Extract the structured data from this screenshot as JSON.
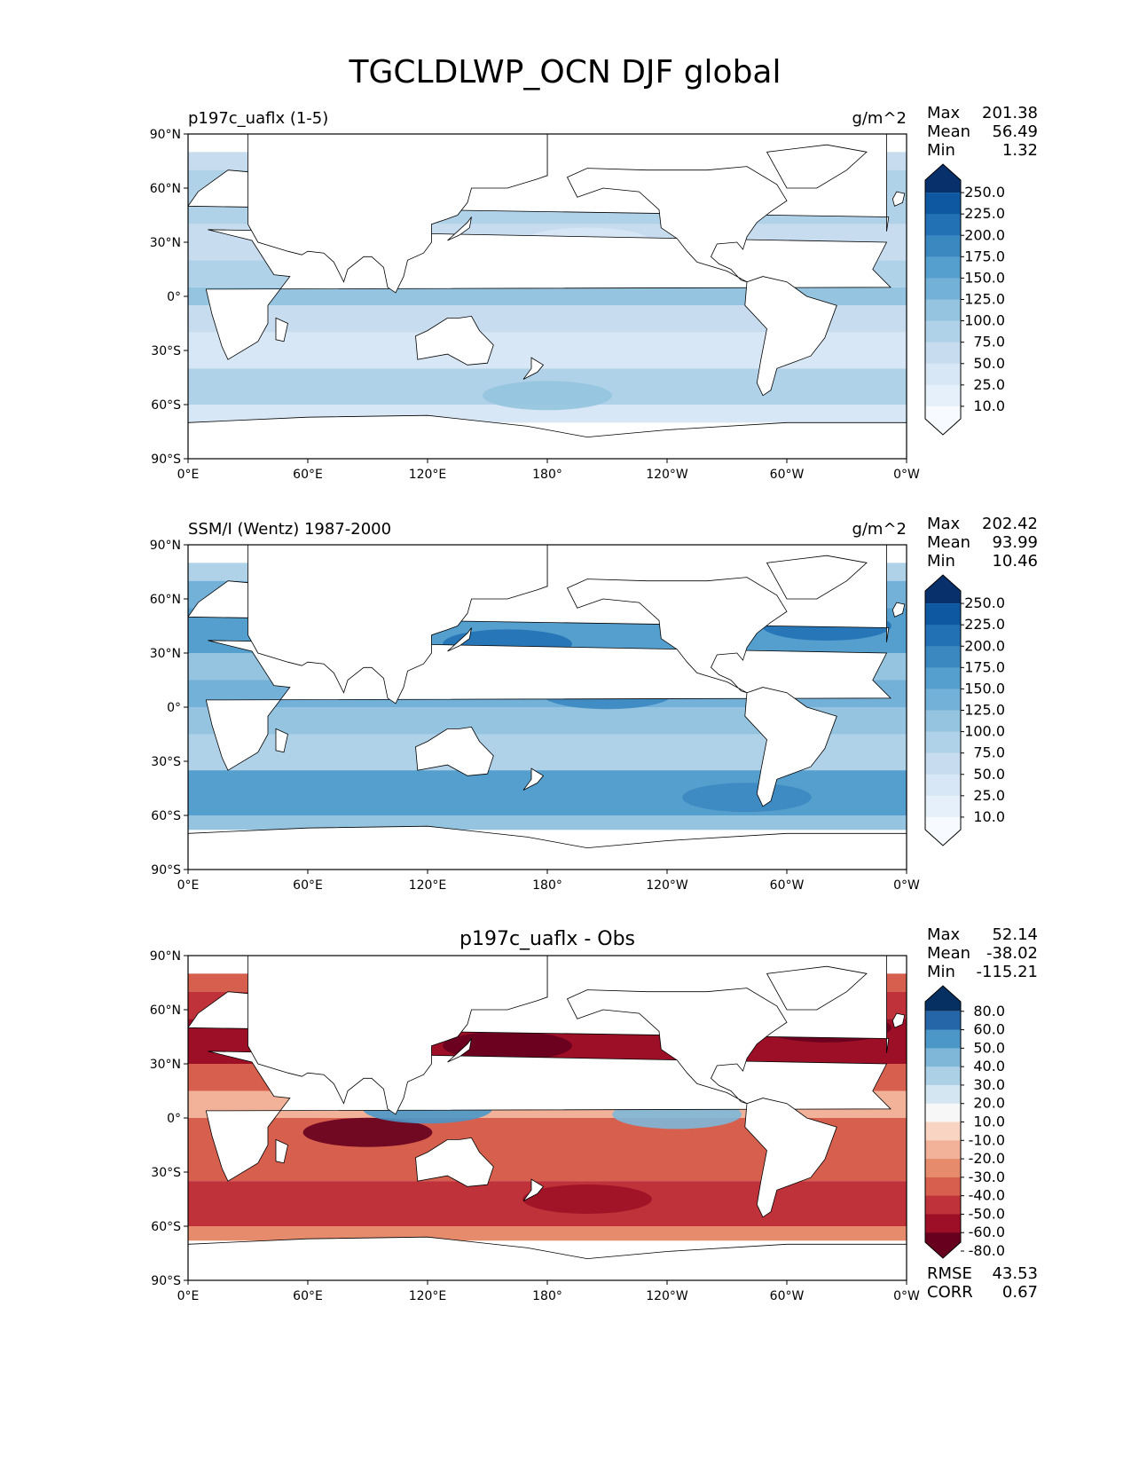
{
  "page_title": "TGCLDLWP_OCN DJF global",
  "colors": {
    "blues_scale": [
      "#f7fbff",
      "#e6f0fa",
      "#d8e7f5",
      "#c7dcef",
      "#b0d2e8",
      "#94c4df",
      "#74b1d9",
      "#549fcd",
      "#3b88c1",
      "#2271b5",
      "#0e58a2",
      "#08306b"
    ],
    "diff_scale": [
      "#67001f",
      "#9d0f26",
      "#c0323a",
      "#d65f4e",
      "#e68c6d",
      "#f2b29a",
      "#fad4c2",
      "#f7f7f7",
      "#d4e6f1",
      "#acd1e6",
      "#7eb7d8",
      "#4a97c8",
      "#2566a8",
      "#053061"
    ],
    "land": "#ffffff",
    "coastline": "#000000"
  },
  "chart_data": [
    {
      "type": "heatmap",
      "title": "p197c_uaflx (1-5)",
      "units": "g/m^2",
      "stats": {
        "max_label": "Max",
        "max": "201.38",
        "mean_label": "Mean",
        "mean": "56.49",
        "min_label": "Min",
        "min": "1.32"
      },
      "x_ticks": [
        "0°E",
        "60°E",
        "120°E",
        "180°",
        "120°W",
        "60°W",
        "0°W"
      ],
      "y_ticks": [
        "90°N",
        "60°N",
        "30°N",
        "0°",
        "30°S",
        "60°S",
        "90°S"
      ],
      "xlim": [
        0,
        360
      ],
      "ylim": [
        -90,
        90
      ],
      "colorbar_labels": [
        "250.0",
        "225.0",
        "200.0",
        "175.0",
        "150.0",
        "125.0",
        "100.0",
        "75.0",
        "50.0",
        "25.0",
        "10.0"
      ],
      "colormap": "blues_scale",
      "bands": [
        {
          "lat": [
            70,
            80
          ],
          "level": 3
        },
        {
          "lat": [
            55,
            70
          ],
          "level": 4
        },
        {
          "lat": [
            40,
            55
          ],
          "level": 4
        },
        {
          "lat": [
            20,
            40
          ],
          "level": 3
        },
        {
          "lat": [
            5,
            20
          ],
          "level": 4
        },
        {
          "lat": [
            -5,
            5
          ],
          "level": 5
        },
        {
          "lat": [
            -20,
            -5
          ],
          "level": 3
        },
        {
          "lat": [
            -40,
            -20
          ],
          "level": 2
        },
        {
          "lat": [
            -60,
            -40
          ],
          "level": 4
        },
        {
          "lat": [
            -70,
            -60
          ],
          "level": 2
        }
      ],
      "features": [
        {
          "lon": 130,
          "lat": 15,
          "level": 6
        },
        {
          "lon": 285,
          "lat": 5,
          "level": 5
        },
        {
          "lon": 200,
          "lat": 30,
          "level": 2
        },
        {
          "lon": 180,
          "lat": -55,
          "level": 5
        }
      ]
    },
    {
      "type": "heatmap",
      "title": "SSM/I (Wentz) 1987-2000",
      "units": "g/m^2",
      "stats": {
        "max_label": "Max",
        "max": "202.42",
        "mean_label": "Mean",
        "mean": "93.99",
        "min_label": "Min",
        "min": "10.46"
      },
      "x_ticks": [
        "0°E",
        "60°E",
        "120°E",
        "180°",
        "120°W",
        "60°W",
        "0°W"
      ],
      "y_ticks": [
        "90°N",
        "60°N",
        "30°N",
        "0°",
        "30°S",
        "60°S",
        "90°S"
      ],
      "xlim": [
        0,
        360
      ],
      "ylim": [
        -90,
        90
      ],
      "colorbar_labels": [
        "250.0",
        "225.0",
        "200.0",
        "175.0",
        "150.0",
        "125.0",
        "100.0",
        "75.0",
        "50.0",
        "25.0",
        "10.0"
      ],
      "colormap": "blues_scale",
      "bands": [
        {
          "lat": [
            70,
            80
          ],
          "level": 4
        },
        {
          "lat": [
            55,
            70
          ],
          "level": 6
        },
        {
          "lat": [
            30,
            55
          ],
          "level": 7
        },
        {
          "lat": [
            15,
            30
          ],
          "level": 5
        },
        {
          "lat": [
            0,
            15
          ],
          "level": 6
        },
        {
          "lat": [
            -15,
            0
          ],
          "level": 5
        },
        {
          "lat": [
            -35,
            -15
          ],
          "level": 4
        },
        {
          "lat": [
            -60,
            -35
          ],
          "level": 7
        },
        {
          "lat": [
            -68,
            -60
          ],
          "level": 5
        }
      ],
      "features": [
        {
          "lon": 160,
          "lat": 35,
          "level": 9
        },
        {
          "lon": 320,
          "lat": 45,
          "level": 9
        },
        {
          "lon": 210,
          "lat": 7,
          "level": 8
        },
        {
          "lon": 280,
          "lat": -50,
          "level": 8
        }
      ]
    },
    {
      "type": "heatmap",
      "title": "p197c_uaflx - Obs",
      "stats": {
        "max_label": "Max",
        "max": "52.14",
        "mean_label": "Mean",
        "mean": "-38.02",
        "min_label": "Min",
        "min": "-115.21"
      },
      "x_ticks": [
        "0°E",
        "60°E",
        "120°E",
        "180°",
        "120°W",
        "60°W",
        "0°W"
      ],
      "y_ticks": [
        "90°N",
        "60°N",
        "30°N",
        "0°",
        "30°S",
        "60°S",
        "90°S"
      ],
      "xlim": [
        0,
        360
      ],
      "ylim": [
        -90,
        90
      ],
      "colorbar_labels": [
        "80.0",
        "60.0",
        "50.0",
        "40.0",
        "30.0",
        "20.0",
        "10.0",
        "-10.0",
        "-20.0",
        "-30.0",
        "-40.0",
        "-50.0",
        "-60.0",
        "-80.0"
      ],
      "colormap": "diff_scale",
      "bands": [
        {
          "lat": [
            70,
            80
          ],
          "level": 3
        },
        {
          "lat": [
            55,
            70
          ],
          "level": 2
        },
        {
          "lat": [
            30,
            55
          ],
          "level": 1
        },
        {
          "lat": [
            15,
            30
          ],
          "level": 3
        },
        {
          "lat": [
            0,
            15
          ],
          "level": 5
        },
        {
          "lat": [
            -15,
            0
          ],
          "level": 3
        },
        {
          "lat": [
            -35,
            -15
          ],
          "level": 3
        },
        {
          "lat": [
            -60,
            -35
          ],
          "level": 2
        },
        {
          "lat": [
            -68,
            -60
          ],
          "level": 4
        }
      ],
      "features": [
        {
          "lon": 160,
          "lat": 40,
          "level": 0
        },
        {
          "lon": 320,
          "lat": 50,
          "level": 0
        },
        {
          "lon": 90,
          "lat": -8,
          "level": 0
        },
        {
          "lon": 200,
          "lat": -45,
          "level": 1
        },
        {
          "lon": 245,
          "lat": 2,
          "level": 10
        },
        {
          "lon": 120,
          "lat": 5,
          "level": 11
        }
      ],
      "footer": {
        "rmse_label": "RMSE",
        "rmse": "43.53",
        "corr_label": "CORR",
        "corr": "0.67"
      }
    }
  ]
}
